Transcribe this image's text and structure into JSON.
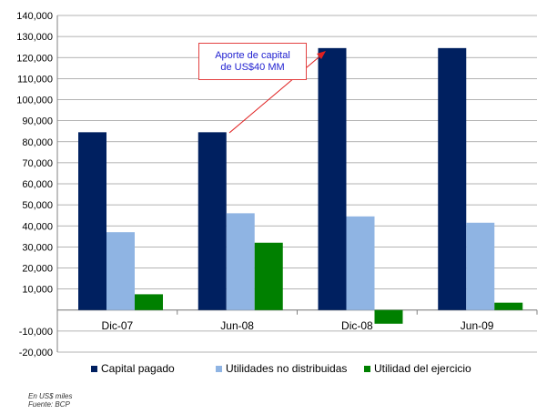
{
  "chart_data": {
    "type": "bar",
    "categories": [
      "Dic-07",
      "Jun-08",
      "Dic-08",
      "Jun-09"
    ],
    "series": [
      {
        "name": "Capital pagado",
        "color": "#002060",
        "values": [
          84500,
          84500,
          124500,
          124500
        ]
      },
      {
        "name": "Utilidades no distribuidas",
        "color": "#8fb4e3",
        "values": [
          37000,
          46000,
          44500,
          41500
        ]
      },
      {
        "name": "Utilidad del ejercicio",
        "color": "#008000",
        "values": [
          7500,
          32000,
          -6500,
          3500
        ]
      }
    ],
    "ylim": [
      -20000,
      140000
    ],
    "ytick_step": 10000,
    "ytick_labels": [
      "-20,000",
      "-10,000",
      "",
      "10,000",
      "20,000",
      "30,000",
      "40,000",
      "50,000",
      "60,000",
      "70,000",
      "80,000",
      "90,000",
      "100,000",
      "110,000",
      "120,000",
      "130,000",
      "140,000"
    ],
    "grid": true,
    "legend_position": "bottom",
    "annotation": {
      "line1": "Aporte de capital",
      "line2": "de US$40 MM"
    }
  },
  "footnotes": {
    "unit": "En US$ miles",
    "source": "Fuente: BCP"
  }
}
